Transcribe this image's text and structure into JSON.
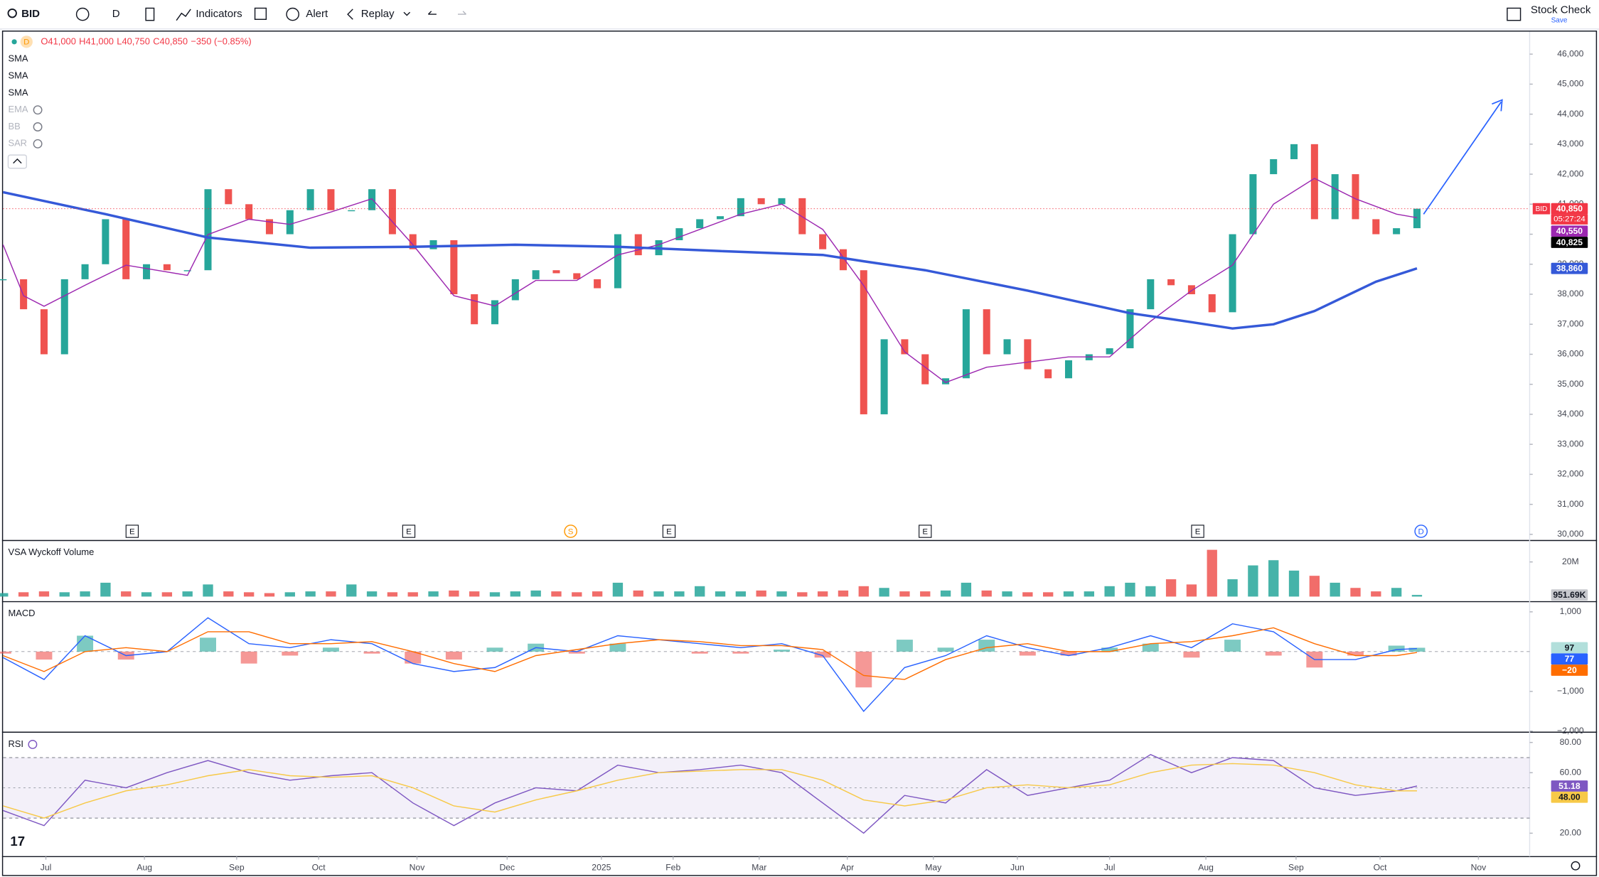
{
  "toolbar": {
    "symbol": "BID",
    "interval": "D",
    "indicators": "Indicators",
    "alert": "Alert",
    "replay": "Replay",
    "layout": "Stock Check",
    "save": "Save"
  },
  "legend": {
    "interval": "D",
    "ohlc": [
      "O41,000",
      "H41,000",
      "L40,750",
      "C40,850",
      "−350 (−0.85%)"
    ],
    "indicators": [
      "SMA",
      "SMA",
      "SMA",
      "EMA",
      "BB",
      "SAR"
    ]
  },
  "chart_data": [
    {
      "type": "candlestick",
      "symbol": "BID",
      "time_left": "05:27:24",
      "xlim": [
        0,
        74.5
      ],
      "ylim": [
        29830,
        46750
      ],
      "yticks": [
        {
          "value": 30000,
          "label": "30,000"
        },
        {
          "value": 31000,
          "label": "31,000"
        },
        {
          "value": 32000,
          "label": "32,000"
        },
        {
          "value": 33000,
          "label": "33,000"
        },
        {
          "value": 34000,
          "label": "34,000"
        },
        {
          "value": 35000,
          "label": "35,000"
        },
        {
          "value": 36000,
          "label": "36,000"
        },
        {
          "value": 37000,
          "label": "37,000"
        },
        {
          "value": 38000,
          "label": "38,000"
        },
        {
          "value": 39000,
          "label": "39,000"
        },
        {
          "value": 40000,
          "label": "40,000"
        },
        {
          "value": 41000,
          "label": "41,000"
        },
        {
          "value": 42000,
          "label": "42,000"
        },
        {
          "value": 43000,
          "label": "43,000"
        },
        {
          "value": 44000,
          "label": "44,000"
        },
        {
          "value": 45000,
          "label": "45,000"
        },
        {
          "value": 46000,
          "label": "46,000"
        }
      ],
      "x": [
        0,
        1,
        2,
        3,
        4,
        5,
        6,
        7,
        8,
        9,
        10,
        11,
        12,
        13,
        14,
        15,
        16,
        17,
        18,
        19,
        20,
        21,
        22,
        23,
        24,
        25,
        26,
        27,
        28,
        29,
        30,
        31,
        32,
        33,
        34,
        35,
        36,
        37,
        38,
        39,
        40,
        41,
        42,
        43,
        44,
        45,
        46,
        47,
        48,
        49,
        50,
        51,
        52,
        53,
        54,
        55,
        56,
        57,
        58,
        59,
        60,
        61,
        62,
        63,
        64,
        65,
        66,
        67,
        68,
        69
      ],
      "series": [
        {
          "type": "candle",
          "up_color": "#26a69a",
          "down_color": "#ef5350",
          "last_label": "40,850",
          "color": "#f23645",
          "values": [
            38500,
            37500,
            36000,
            38500,
            39000,
            40500,
            38500,
            39000,
            38800,
            38800,
            41500,
            41000,
            40500,
            40000,
            40800,
            41500,
            40800,
            40800,
            41500,
            40000,
            39500,
            39800,
            38000,
            37000,
            37800,
            38500,
            38800,
            38700,
            38500,
            38200,
            40000,
            39300,
            39800,
            40200,
            40500,
            40600,
            41200,
            41000,
            41200,
            40000,
            39500,
            38800,
            34000,
            36500,
            36000,
            35000,
            35200,
            37500,
            36000,
            36500,
            35500,
            35200,
            35800,
            36000,
            36200,
            37500,
            38500,
            38300,
            38000,
            37400,
            40000,
            42000,
            42500,
            43000,
            40500,
            42000,
            40500,
            40000,
            40200,
            40850
          ]
        },
        {
          "type": "line",
          "color": "#9c27b0",
          "last_label": "40,550",
          "x": [
            0,
            1,
            2,
            4,
            6,
            9,
            10,
            12,
            14,
            16,
            18,
            20,
            22,
            24,
            26,
            28,
            30,
            32,
            34,
            36,
            38,
            40,
            42,
            44,
            46,
            48,
            50,
            52,
            54,
            56,
            58,
            60,
            62,
            64,
            66,
            68,
            69
          ],
          "values": [
            39650,
            37950,
            37600,
            38300,
            38970,
            38630,
            39990,
            40500,
            40330,
            40740,
            41180,
            39650,
            37950,
            37610,
            38460,
            38460,
            39310,
            39650,
            40160,
            40670,
            41000,
            40160,
            38290,
            36080,
            35060,
            35570,
            35740,
            35910,
            35910,
            37100,
            38120,
            38970,
            41000,
            41860,
            41180,
            40670,
            40550
          ]
        },
        {
          "type": "line",
          "color": "#3559d8",
          "width": 2.4,
          "last_label": "38,860",
          "x": [
            0,
            5,
            10,
            15,
            20,
            25,
            30,
            35,
            40,
            42,
            45,
            50,
            55,
            58,
            60,
            62,
            64,
            67,
            69
          ],
          "values": [
            41400,
            40670,
            39890,
            39550,
            39580,
            39650,
            39580,
            39440,
            39310,
            39100,
            38800,
            38120,
            37370,
            37070,
            36860,
            37000,
            37440,
            38420,
            38860
          ]
        }
      ],
      "badges": [
        {
          "value": 40825,
          "label": "40,825",
          "color": "#000000"
        }
      ],
      "events": [
        {
          "x": 6.3,
          "label": "E"
        },
        {
          "x": 19.8,
          "label": "E"
        },
        {
          "x": 27.7,
          "label": "S"
        },
        {
          "x": 32.5,
          "label": "E"
        },
        {
          "x": 45,
          "label": "E"
        },
        {
          "x": 58.3,
          "label": "E"
        },
        {
          "x": 69.2,
          "label": "D"
        }
      ]
    },
    {
      "type": "bar",
      "title": "VSA Wyckoff Volume",
      "xlim": [
        0,
        74.5
      ],
      "ylim": [
        -2350000,
        31800000
      ],
      "yticks": [
        {
          "value": 20000000,
          "label": "20M"
        }
      ],
      "x": [
        0,
        1,
        2,
        3,
        4,
        5,
        6,
        7,
        8,
        9,
        10,
        11,
        12,
        13,
        14,
        15,
        16,
        17,
        18,
        19,
        20,
        21,
        22,
        23,
        24,
        25,
        26,
        27,
        28,
        29,
        30,
        31,
        32,
        33,
        34,
        35,
        36,
        37,
        38,
        39,
        40,
        41,
        42,
        43,
        44,
        45,
        46,
        47,
        48,
        49,
        50,
        51,
        52,
        53,
        54,
        55,
        56,
        57,
        58,
        59,
        60,
        61,
        62,
        63,
        64,
        65,
        66,
        67,
        68,
        69
      ],
      "series": [
        {
          "type": "bar",
          "up_color": "#26a69a",
          "down_color": "#ef5350",
          "color": "#787b86",
          "last_label": "951.69K",
          "values": [
            2000000,
            2500000,
            3000000,
            2500000,
            3000000,
            8000000,
            3000000,
            2500000,
            2500000,
            3000000,
            7000000,
            3000000,
            2500000,
            2000000,
            2500000,
            3000000,
            3000000,
            7000000,
            3000000,
            2500000,
            2500000,
            3000000,
            3500000,
            3000000,
            2500000,
            3000000,
            3500000,
            3000000,
            2500000,
            3000000,
            8000000,
            3500000,
            3000000,
            3000000,
            6000000,
            3000000,
            3000000,
            3500000,
            3000000,
            2500000,
            3000000,
            3500000,
            6000000,
            5000000,
            3000000,
            3000000,
            3500000,
            8000000,
            3500000,
            3000000,
            2500000,
            2500000,
            3000000,
            3000000,
            6000000,
            8000000,
            6000000,
            10000000,
            7000000,
            27000000,
            10000000,
            18000000,
            21000000,
            15000000,
            12000000,
            8000000,
            5000000,
            3000000,
            5000000,
            951690
          ]
        }
      ]
    },
    {
      "type": "macd",
      "title": "MACD",
      "xlim": [
        0,
        74.5
      ],
      "ylim": [
        -2000,
        1230
      ],
      "yticks": [
        {
          "value": 1000,
          "label": "1,000"
        },
        {
          "value": -1000,
          "label": "−1,000"
        },
        {
          "value": -2000,
          "label": "−2,000"
        }
      ],
      "x": [
        0,
        2,
        4,
        6,
        8,
        10,
        12,
        14,
        16,
        18,
        20,
        22,
        24,
        26,
        28,
        30,
        32,
        34,
        36,
        38,
        40,
        42,
        44,
        46,
        48,
        50,
        52,
        54,
        56,
        58,
        60,
        62,
        64,
        66,
        68,
        69
      ],
      "series": [
        {
          "type": "histogram",
          "up_color": "#26a69a",
          "down_color": "#ef5350",
          "color": "#b2dfdb",
          "values": [
            -50,
            -200,
            400,
            -200,
            0,
            350,
            -300,
            -100,
            100,
            -50,
            -300,
            -200,
            100,
            200,
            -50,
            200,
            0,
            -50,
            -50,
            50,
            -150,
            -900,
            300,
            100,
            300,
            -100,
            -100,
            100,
            200,
            -150,
            300,
            -100,
            -400,
            -100,
            150,
            97
          ]
        },
        {
          "type": "line",
          "color": "#2962ff",
          "values": [
            -150,
            -700,
            400,
            -100,
            0,
            850,
            200,
            100,
            300,
            200,
            -300,
            -500,
            -400,
            100,
            0,
            400,
            300,
            200,
            100,
            200,
            -100,
            -1500,
            -400,
            -100,
            400,
            100,
            -100,
            100,
            400,
            100,
            700,
            500,
            -200,
            -200,
            50,
            77
          ]
        },
        {
          "type": "line",
          "color": "#ff6d00",
          "last_label": "−20",
          "values": [
            -100,
            -500,
            0,
            100,
            0,
            500,
            500,
            200,
            200,
            250,
            0,
            -300,
            -500,
            -100,
            50,
            200,
            300,
            250,
            150,
            150,
            50,
            -600,
            -700,
            -200,
            100,
            200,
            0,
            0,
            200,
            250,
            400,
            600,
            200,
            -100,
            -100,
            -20
          ]
        }
      ]
    },
    {
      "type": "rsi",
      "title": "RSI",
      "xlim": [
        0,
        74.5
      ],
      "ylim": [
        5.2,
        86.1
      ],
      "band": [
        30,
        70
      ],
      "midline": 50,
      "yticks": [
        {
          "value": 80,
          "label": "80.00"
        },
        {
          "value": 60,
          "label": "60.00"
        },
        {
          "value": 20,
          "label": "20.00"
        }
      ],
      "xticks": [
        {
          "value": 2.09,
          "label": "Jul"
        },
        {
          "value": 6.9,
          "label": "Aug"
        },
        {
          "value": 11.4,
          "label": "Sep"
        },
        {
          "value": 15.4,
          "label": "Oct"
        },
        {
          "value": 20.2,
          "label": "Nov"
        },
        {
          "value": 24.6,
          "label": "Dec"
        },
        {
          "value": 29.2,
          "label": "2025"
        },
        {
          "value": 32.7,
          "label": "Feb"
        },
        {
          "value": 36.9,
          "label": "Mar"
        },
        {
          "value": 41.2,
          "label": "Apr"
        },
        {
          "value": 45.4,
          "label": "May"
        },
        {
          "value": 49.5,
          "label": "Jun"
        },
        {
          "value": 54,
          "label": "Jul"
        },
        {
          "value": 58.7,
          "label": "Aug"
        },
        {
          "value": 63.1,
          "label": "Sep"
        },
        {
          "value": 67.2,
          "label": "Oct"
        },
        {
          "value": 72,
          "label": "Nov"
        }
      ],
      "x": [
        0,
        2,
        4,
        6,
        8,
        10,
        12,
        14,
        16,
        18,
        20,
        22,
        24,
        26,
        28,
        30,
        32,
        34,
        36,
        38,
        40,
        42,
        44,
        46,
        48,
        50,
        52,
        54,
        56,
        58,
        60,
        62,
        64,
        66,
        68,
        69
      ],
      "series": [
        {
          "type": "line",
          "color": "#7e57c2",
          "values": [
            35,
            25,
            55,
            50,
            60,
            68,
            60,
            55,
            58,
            60,
            40,
            25,
            40,
            50,
            48,
            65,
            60,
            62,
            65,
            60,
            40,
            20,
            45,
            40,
            62,
            45,
            50,
            55,
            72,
            60,
            70,
            68,
            50,
            45,
            48,
            51.18
          ]
        },
        {
          "type": "line",
          "color": "#f7c948",
          "text_color": "#131722",
          "last_label": "48.00",
          "values": [
            38,
            30,
            40,
            48,
            52,
            58,
            62,
            58,
            57,
            58,
            50,
            38,
            34,
            42,
            48,
            55,
            60,
            61,
            62,
            62,
            55,
            42,
            38,
            42,
            50,
            52,
            50,
            52,
            60,
            65,
            66,
            65,
            60,
            52,
            48,
            48
          ]
        }
      ]
    }
  ]
}
